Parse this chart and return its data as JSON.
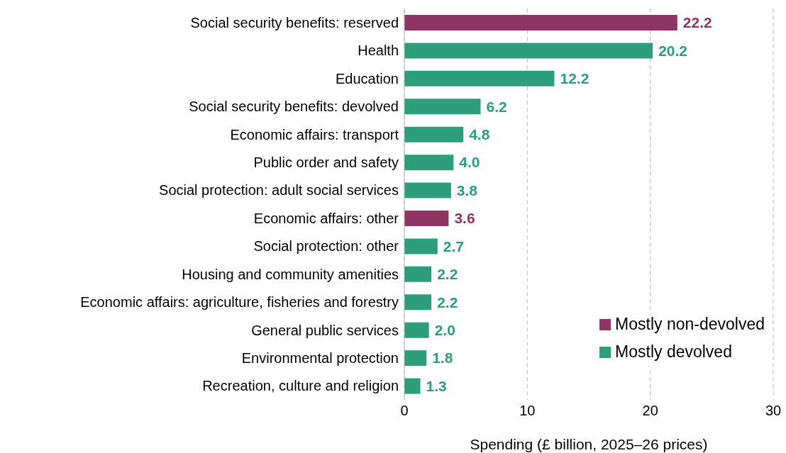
{
  "chart_data": {
    "type": "bar",
    "orientation": "horizontal",
    "stacked": true,
    "xlabel": "Spending (£ billion, 2025–26 prices)",
    "categories": [
      "Social security benefits: reserved",
      "Health",
      "Education",
      "Social security benefits: devolved",
      "Economic affairs: transport",
      "Public order and safety",
      "Social protection: adult social services",
      "Economic affairs: other",
      "Social protection: other",
      "Housing and community amenities",
      "Economic affairs: agriculture, fisheries and forestry",
      "General public services",
      "Environmental protection",
      "Recreation, culture and religion"
    ],
    "series": [
      {
        "name": "Mostly non-devolved",
        "color": "#8e3564",
        "values": [
          22.2,
          null,
          null,
          null,
          null,
          null,
          null,
          3.6,
          null,
          null,
          null,
          null,
          null,
          null
        ],
        "value_labels": [
          "22.2",
          null,
          null,
          null,
          null,
          null,
          null,
          "3.6",
          null,
          null,
          null,
          null,
          null,
          null
        ]
      },
      {
        "name": "Mostly devolved",
        "color": "#2e9e7a",
        "values": [
          null,
          20.2,
          12.2,
          6.2,
          4.8,
          4.0,
          3.8,
          null,
          2.7,
          2.2,
          2.2,
          2.0,
          1.8,
          1.3
        ],
        "value_labels": [
          null,
          "20.2",
          "12.2",
          "6.2",
          "4.8",
          "4.0",
          "3.8",
          null,
          "2.7",
          "2.2",
          "2.2",
          "2.0",
          "1.8",
          "1.3"
        ]
      }
    ],
    "xlim": [
      0,
      30
    ],
    "xticks": [
      0,
      10,
      20,
      30
    ],
    "grid": "x",
    "legend": "bottom right"
  }
}
